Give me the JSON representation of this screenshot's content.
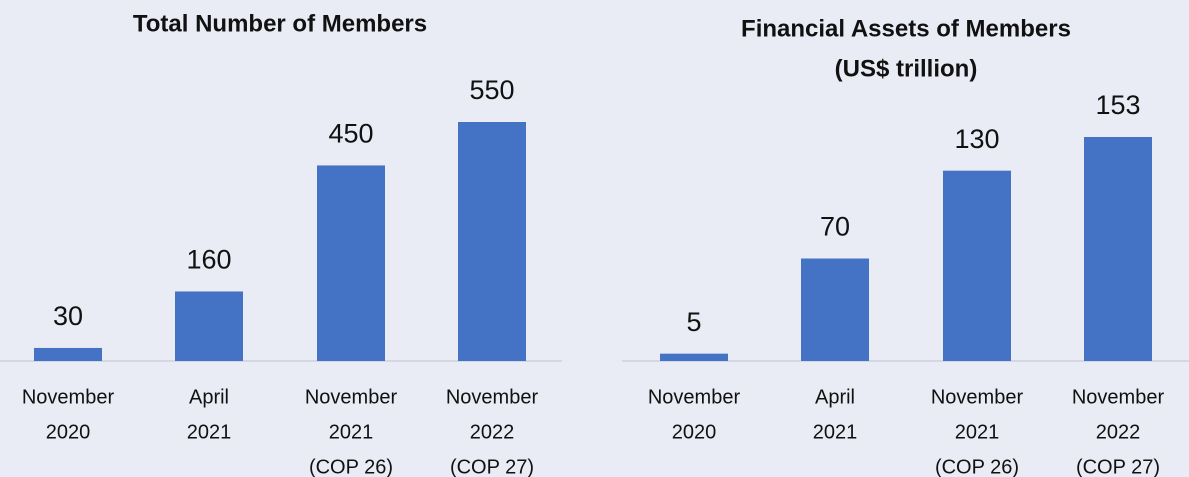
{
  "chart_data": [
    {
      "type": "bar",
      "title": [
        "Total Number of Members"
      ],
      "categories": [
        [
          "November",
          "2020"
        ],
        [
          "April",
          "2021"
        ],
        [
          "November",
          "2021",
          "(COP 26)"
        ],
        [
          "November",
          "2022",
          "(COP 27)"
        ]
      ],
      "values": [
        30,
        160,
        450,
        550
      ],
      "color": "#4472c4"
    },
    {
      "type": "bar",
      "title": [
        "Financial Assets of Members",
        "(US$ trillion)"
      ],
      "categories": [
        [
          "November",
          "2020"
        ],
        [
          "April",
          "2021"
        ],
        [
          "November",
          "2021",
          "(COP 26)"
        ],
        [
          "November",
          "2022",
          "(COP 27)"
        ]
      ],
      "values": [
        5,
        70,
        130,
        153
      ],
      "color": "#4472c4"
    }
  ]
}
